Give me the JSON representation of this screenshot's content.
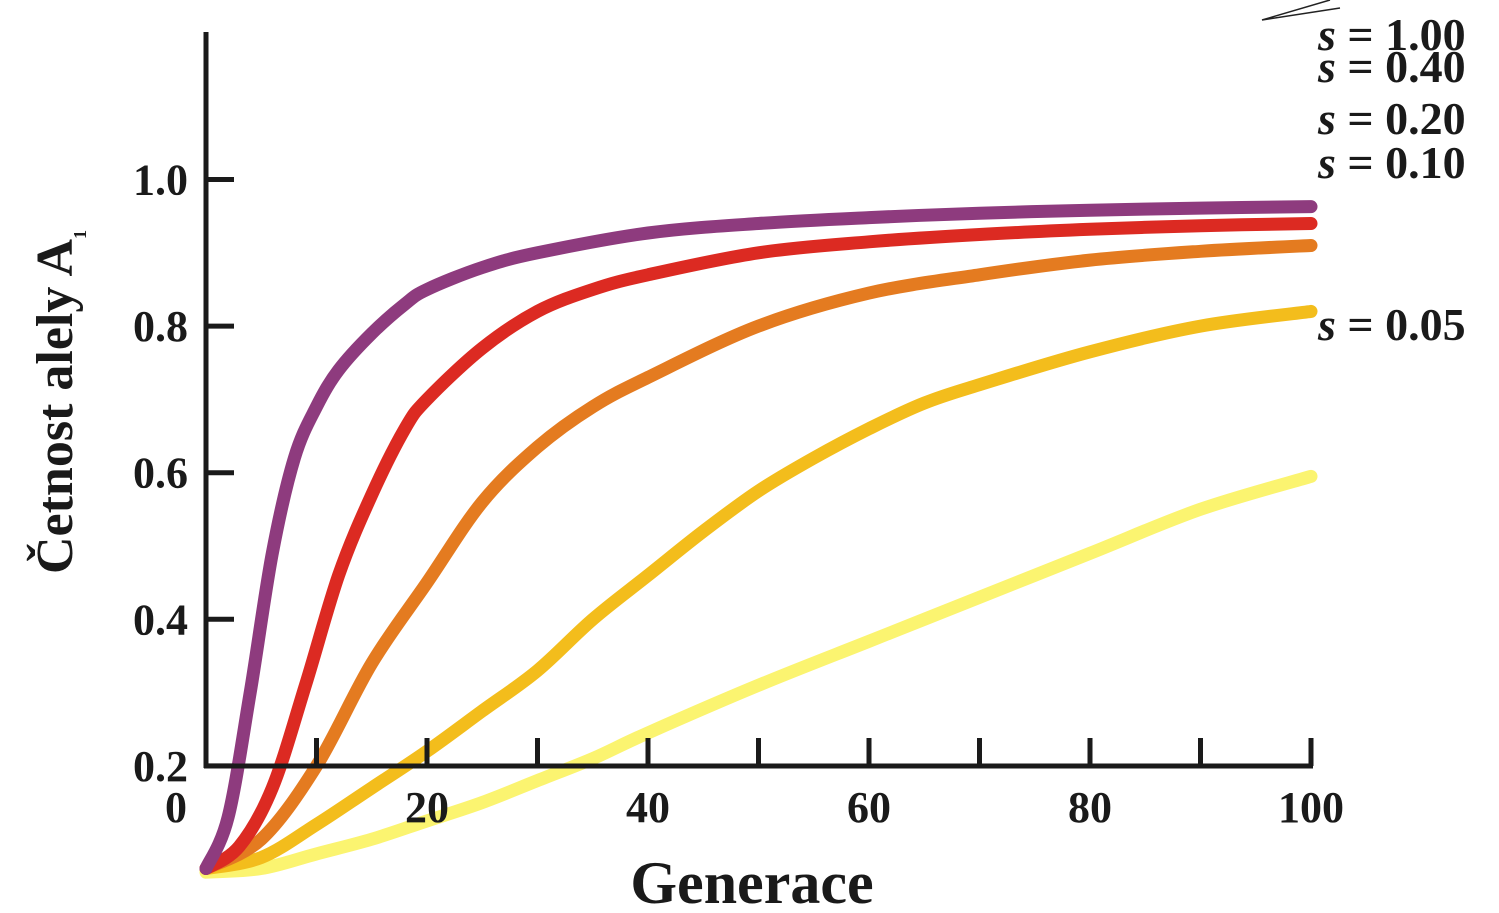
{
  "chart_data": {
    "type": "line",
    "xlabel": "Generace",
    "ylabel": "Četnost alely A",
    "ylabel_subscript": "1",
    "xlim": [
      0,
      100
    ],
    "ylim": [
      0.05,
      1.0
    ],
    "x_ticks": [
      "0",
      "20",
      "40",
      "60",
      "80",
      "100"
    ],
    "x_minor_ticks": [
      10,
      20,
      30,
      40,
      50,
      60,
      70,
      80,
      90,
      100
    ],
    "y_ticks": [
      "0.2",
      "0.4",
      "0.6",
      "0.8",
      "1.0"
    ],
    "grid": false,
    "series": [
      {
        "name": "s = 1.00",
        "label_var": "s",
        "label_rest": " = 1.00",
        "color": "#8e3b7e",
        "x": [
          0,
          2,
          4,
          6,
          8,
          10,
          12,
          15,
          18,
          20,
          25,
          30,
          40,
          50,
          60,
          70,
          80,
          90,
          100
        ],
        "y": [
          0.06,
          0.13,
          0.3,
          0.49,
          0.62,
          0.69,
          0.74,
          0.79,
          0.83,
          0.85,
          0.88,
          0.9,
          0.927,
          0.94,
          0.948,
          0.954,
          0.958,
          0.961,
          0.963
        ]
      },
      {
        "name": "s = 0.40",
        "label_var": "s",
        "label_rest": " = 0.40",
        "color": "#dc2a22",
        "x": [
          0,
          3,
          6,
          9,
          12,
          15,
          18,
          20,
          25,
          30,
          35,
          40,
          50,
          60,
          70,
          80,
          90,
          100
        ],
        "y": [
          0.06,
          0.09,
          0.17,
          0.31,
          0.46,
          0.57,
          0.66,
          0.7,
          0.77,
          0.82,
          0.85,
          0.87,
          0.9,
          0.915,
          0.925,
          0.932,
          0.937,
          0.94
        ]
      },
      {
        "name": "s = 0.20",
        "label_var": "s",
        "label_rest": " = 0.20",
        "color": "#e47b20",
        "x": [
          0,
          5,
          10,
          15,
          20,
          25,
          30,
          35,
          40,
          50,
          60,
          70,
          80,
          90,
          100
        ],
        "y": [
          0.06,
          0.1,
          0.2,
          0.34,
          0.45,
          0.56,
          0.635,
          0.69,
          0.73,
          0.8,
          0.845,
          0.87,
          0.89,
          0.902,
          0.91
        ]
      },
      {
        "name": "s = 0.10",
        "label_var": "s",
        "label_rest": " = 0.10",
        "color": "#f3bd1c",
        "x": [
          0,
          5,
          10,
          15,
          20,
          25,
          30,
          35,
          40,
          45,
          50,
          55,
          60,
          65,
          70,
          80,
          90,
          100
        ],
        "y": [
          0.06,
          0.075,
          0.12,
          0.17,
          0.22,
          0.275,
          0.33,
          0.4,
          0.46,
          0.52,
          0.575,
          0.62,
          0.66,
          0.695,
          0.72,
          0.765,
          0.8,
          0.82
        ]
      },
      {
        "name": "s = 0.05",
        "label_var": "s",
        "label_rest": " = 0.05",
        "color": "#fbf470",
        "x": [
          0,
          5,
          10,
          15,
          20,
          25,
          30,
          35,
          40,
          50,
          60,
          70,
          80,
          90,
          100
        ],
        "y": [
          0.055,
          0.06,
          0.08,
          0.1,
          0.125,
          0.15,
          0.18,
          0.21,
          0.245,
          0.31,
          0.37,
          0.43,
          0.49,
          0.55,
          0.595
        ]
      }
    ]
  }
}
